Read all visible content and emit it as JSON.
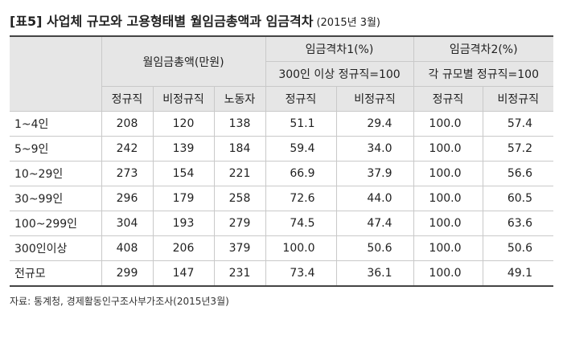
{
  "title": "[표5] 사업체 규모와 고용형태별 월임금총액과 임금격차",
  "title_sub": "(2015년 3월)",
  "headers": {
    "group_wage": "월임금총액(만원)",
    "group_gap1": "임금격차1(%)",
    "group_gap1_sub": "300인 이상 정규직=100",
    "group_gap2": "임금격차2(%)",
    "group_gap2_sub": "각 규모별 정규직=100",
    "col_regular": "정규직",
    "col_irregular": "비정규직",
    "col_worker": "노동자"
  },
  "rows": [
    {
      "label": "1~4인",
      "w_reg": "208",
      "w_irr": "120",
      "w_all": "138",
      "g1_reg": "51.1",
      "g1_irr": "29.4",
      "g2_reg": "100.0",
      "g2_irr": "57.4"
    },
    {
      "label": "5~9인",
      "w_reg": "242",
      "w_irr": "139",
      "w_all": "184",
      "g1_reg": "59.4",
      "g1_irr": "34.0",
      "g2_reg": "100.0",
      "g2_irr": "57.2"
    },
    {
      "label": "10~29인",
      "w_reg": "273",
      "w_irr": "154",
      "w_all": "221",
      "g1_reg": "66.9",
      "g1_irr": "37.9",
      "g2_reg": "100.0",
      "g2_irr": "56.6"
    },
    {
      "label": "30~99인",
      "w_reg": "296",
      "w_irr": "179",
      "w_all": "258",
      "g1_reg": "72.6",
      "g1_irr": "44.0",
      "g2_reg": "100.0",
      "g2_irr": "60.5"
    },
    {
      "label": "100~299인",
      "w_reg": "304",
      "w_irr": "193",
      "w_all": "279",
      "g1_reg": "74.5",
      "g1_irr": "47.4",
      "g2_reg": "100.0",
      "g2_irr": "63.6"
    },
    {
      "label": "300인이상",
      "w_reg": "408",
      "w_irr": "206",
      "w_all": "379",
      "g1_reg": "100.0",
      "g1_irr": "50.6",
      "g2_reg": "100.0",
      "g2_irr": "50.6"
    },
    {
      "label": "전규모",
      "w_reg": "299",
      "w_irr": "147",
      "w_all": "231",
      "g1_reg": "73.4",
      "g1_irr": "36.1",
      "g2_reg": "100.0",
      "g2_irr": "49.1"
    }
  ],
  "source": "자료: 통계청, 경제활동인구조사부가조사(2015년3월)"
}
